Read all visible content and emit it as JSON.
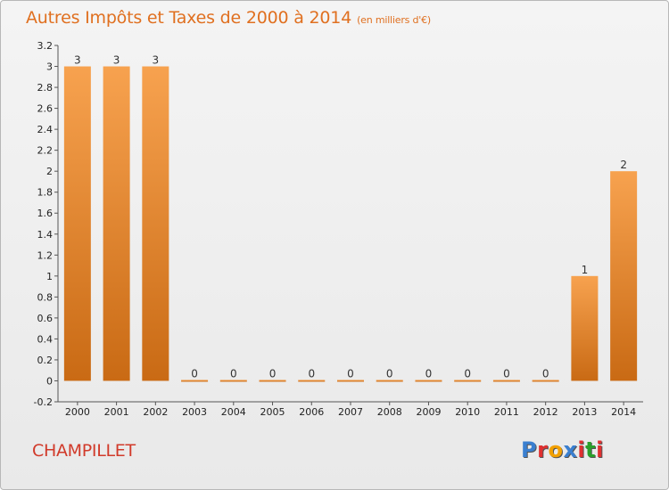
{
  "header": {
    "title": "Autres Impôts et Taxes de 2000 à 2014",
    "unit": "(en milliers d'€)"
  },
  "footer": {
    "place": "CHAMPILLET",
    "logo": "Proxiti",
    "logo_colors": [
      "#3a7fd0",
      "#e03030",
      "#f2a000",
      "#3a7fd0",
      "#e03030",
      "#2aa02a",
      "#e03030"
    ]
  },
  "chart_data": {
    "type": "bar",
    "categories": [
      "2000",
      "2001",
      "2002",
      "2003",
      "2004",
      "2005",
      "2006",
      "2007",
      "2008",
      "2009",
      "2010",
      "2011",
      "2012",
      "2013",
      "2014"
    ],
    "values": [
      3,
      3,
      3,
      0,
      0,
      0,
      0,
      0,
      0,
      0,
      0,
      0,
      0,
      1,
      2
    ],
    "value_labels": [
      "3",
      "3",
      "3",
      "0",
      "0",
      "0",
      "0",
      "0",
      "0",
      "0",
      "0",
      "0",
      "0",
      "1",
      "2"
    ],
    "ylim": [
      -0.2,
      3.2
    ],
    "yticks": [
      -0.2,
      0,
      0.2,
      0.4,
      0.6,
      0.8,
      1,
      1.2,
      1.4,
      1.6,
      1.8,
      2,
      2.2,
      2.4,
      2.6,
      2.8,
      3,
      3.2
    ],
    "ytick_labels": [
      "-0.2",
      "0",
      "0.2",
      "0.4",
      "0.6",
      "0.8",
      "1",
      "1.2",
      "1.4",
      "1.6",
      "1.8",
      "2",
      "2.2",
      "2.4",
      "2.6",
      "2.8",
      "3",
      "3.2"
    ],
    "bar_color_top": "#f7a24f",
    "bar_color_bottom": "#c96a14",
    "grid": false
  }
}
